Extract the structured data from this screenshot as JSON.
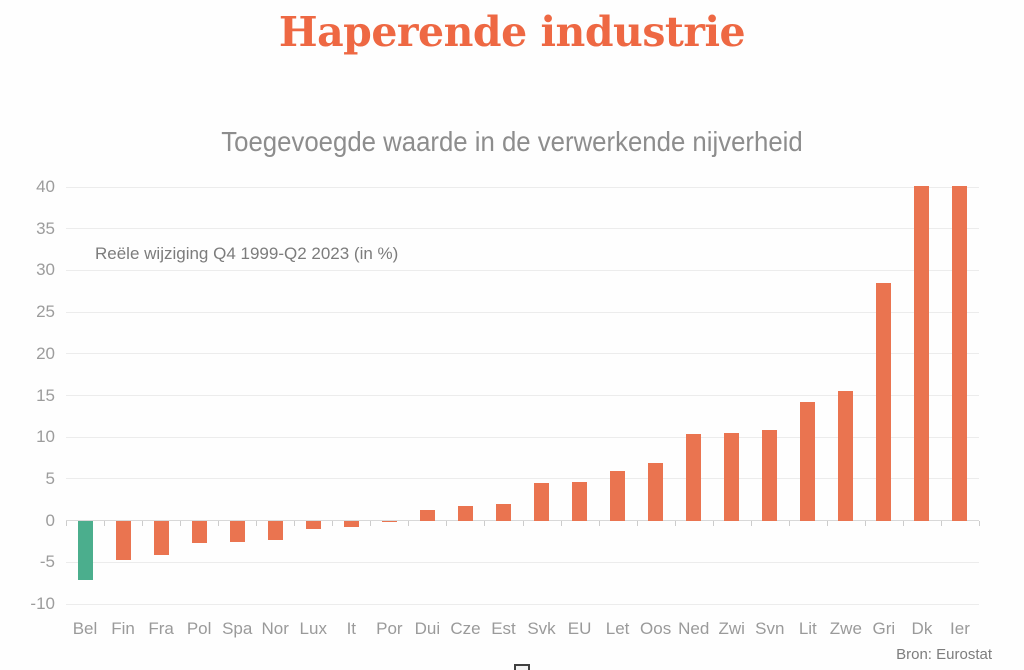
{
  "chart_data": {
    "type": "bar",
    "title": "Haperende industrie",
    "subtitle": "Toegevoegde waarde in de verwerkende nijverheid",
    "annotation": "Reële wijziging Q4 1999-Q2 2023 (in %)",
    "source": "Bron: Eurostat",
    "categories": [
      "Bel",
      "Fin",
      "Fra",
      "Pol",
      "Spa",
      "Nor",
      "Lux",
      "It",
      "Por",
      "Dui",
      "Cze",
      "Est",
      "Svk",
      "EU",
      "Let",
      "Oos",
      "Ned",
      "Zwi",
      "Svn",
      "Lit",
      "Zwe",
      "Gri",
      "Dk",
      "Ier"
    ],
    "values": [
      -7.1,
      -4.7,
      -4.1,
      -2.7,
      -2.6,
      -2.3,
      -1.0,
      -0.8,
      -0.2,
      1.3,
      1.8,
      2.0,
      4.5,
      4.6,
      6.0,
      6.9,
      10.4,
      10.5,
      10.9,
      14.2,
      15.5,
      28.5,
      40,
      40
    ],
    "highlight_index": 0,
    "clipped_at_ymax": [
      "Dk",
      "Ier"
    ],
    "ylim": [
      -10,
      40
    ],
    "yticks": [
      40,
      35,
      30,
      25,
      20,
      15,
      10,
      5,
      0,
      -5,
      -10
    ],
    "grid": true,
    "legend": "none",
    "colors": {
      "bar_default": "#ea7450",
      "bar_highlight": "#4bae8d",
      "title": "#ee6843",
      "subtitle": "#8d8d8d",
      "axis_text": "#9c9c9c",
      "gridline": "#ececec",
      "zero_line": "#d8d8d8",
      "source_text": "#7d7d7d"
    }
  }
}
